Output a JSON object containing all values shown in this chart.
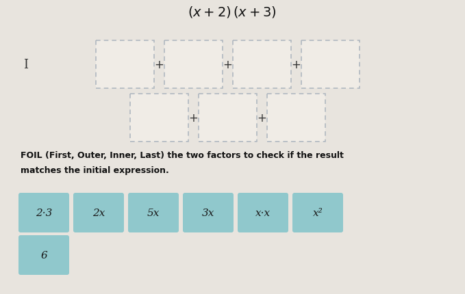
{
  "title": "$(x + 2)(x + 3)$",
  "title_plain": "(x + 2) (x + 3)",
  "background_color": "#e8e4de",
  "box_fill": "#f0ece6",
  "box_border_color": "#b0b8c0",
  "instruction_line1": "FOIL (First, Outer, Inner, Last) the two factors to check if the result",
  "instruction_line2": "matches the initial expression.",
  "tiles_row1": [
    "2·3",
    "2x",
    "5x",
    "3x",
    "x·x",
    "x²"
  ],
  "tiles_row2": [
    "6"
  ],
  "tile_bg": "#90c8cc",
  "tile_text_color": "#1a1a1a",
  "plus_color": "#333333",
  "title_color": "#111111",
  "instruction_color": "#111111",
  "fig_width": 6.79,
  "fig_height": 4.31,
  "dpi": 100
}
